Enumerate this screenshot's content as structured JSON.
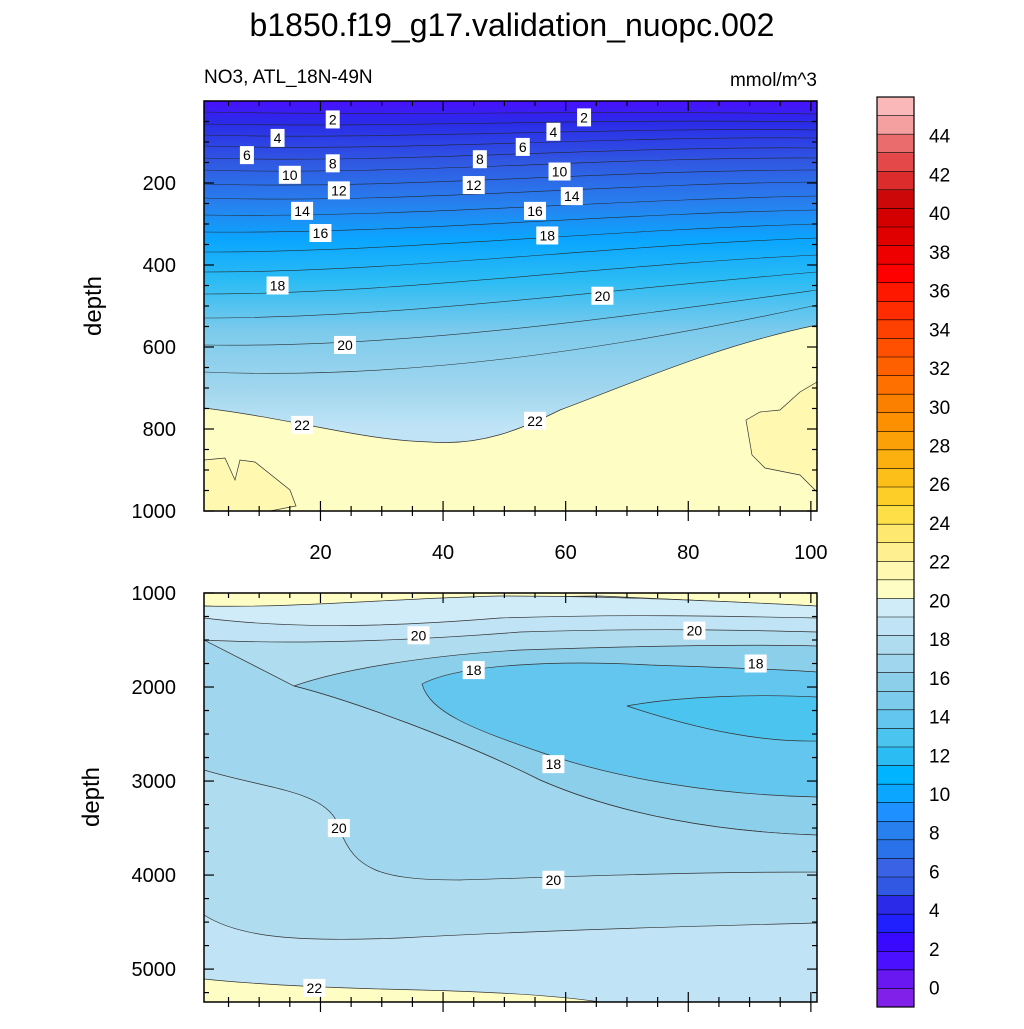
{
  "chart_data": [
    {
      "type": "heatmap",
      "subtype": "filled-contour",
      "title": "b1850.f19_g17.validation_nuopc.002",
      "subtitle_left": "NO3, ATL_18N-49N",
      "subtitle_right": "mmol/m^3",
      "xlabel": "",
      "ylabel": "depth",
      "xlim": [
        1,
        101
      ],
      "ylim": [
        1000,
        0
      ],
      "xticks": [
        20,
        40,
        60,
        80,
        100
      ],
      "xtick_labels": [
        "20",
        "40",
        "60",
        "80",
        "100"
      ],
      "yticks": [
        200,
        400,
        600,
        800,
        1000
      ],
      "ytick_labels": [
        "200",
        "400",
        "600",
        "800",
        "1000"
      ],
      "contour_interval": 2,
      "contour_labels": [
        {
          "text": "2",
          "x": 22,
          "y": 45
        },
        {
          "text": "2",
          "x": 63,
          "y": 40
        },
        {
          "text": "4",
          "x": 13,
          "y": 90
        },
        {
          "text": "4",
          "x": 58,
          "y": 75
        },
        {
          "text": "6",
          "x": 8,
          "y": 132
        },
        {
          "text": "6",
          "x": 53,
          "y": 112
        },
        {
          "text": "8",
          "x": 22,
          "y": 152
        },
        {
          "text": "8",
          "x": 46,
          "y": 142
        },
        {
          "text": "10",
          "x": 15,
          "y": 180
        },
        {
          "text": "10",
          "x": 59,
          "y": 172
        },
        {
          "text": "12",
          "x": 23,
          "y": 218
        },
        {
          "text": "12",
          "x": 45,
          "y": 205
        },
        {
          "text": "14",
          "x": 17,
          "y": 268
        },
        {
          "text": "14",
          "x": 61,
          "y": 232
        },
        {
          "text": "16",
          "x": 20,
          "y": 322
        },
        {
          "text": "16",
          "x": 55,
          "y": 268
        },
        {
          "text": "18",
          "x": 13,
          "y": 450
        },
        {
          "text": "18",
          "x": 57,
          "y": 328
        },
        {
          "text": "20",
          "x": 24,
          "y": 595
        },
        {
          "text": "20",
          "x": 66,
          "y": 475
        },
        {
          "text": "22",
          "x": 17,
          "y": 790
        },
        {
          "text": "22",
          "x": 55,
          "y": 780
        }
      ]
    },
    {
      "type": "heatmap",
      "subtype": "filled-contour",
      "xlabel": "",
      "ylabel": "depth",
      "xlim": [
        1,
        101
      ],
      "ylim": [
        5350,
        1000
      ],
      "xticks": [
        20,
        40,
        60,
        80,
        100
      ],
      "yticks": [
        1000,
        2000,
        3000,
        4000,
        5000
      ],
      "ytick_labels": [
        "1000",
        "2000",
        "3000",
        "4000",
        "5000"
      ],
      "contour_interval": 1,
      "contour_labels": [
        {
          "text": "20",
          "x": 36,
          "y": 1450
        },
        {
          "text": "20",
          "x": 81,
          "y": 1400
        },
        {
          "text": "18",
          "x": 45,
          "y": 1820
        },
        {
          "text": "18",
          "x": 91,
          "y": 1750
        },
        {
          "text": "18",
          "x": 58,
          "y": 2820
        },
        {
          "text": "20",
          "x": 23,
          "y": 3500
        },
        {
          "text": "20",
          "x": 58,
          "y": 4050
        },
        {
          "text": "22",
          "x": 19,
          "y": 5200
        }
      ]
    }
  ],
  "colorbar": {
    "labels": [
      "0",
      "2",
      "4",
      "6",
      "8",
      "10",
      "12",
      "14",
      "16",
      "18",
      "20",
      "22",
      "24",
      "26",
      "28",
      "30",
      "32",
      "34",
      "36",
      "38",
      "40",
      "42",
      "44"
    ],
    "level_min": -1,
    "level_max": 46,
    "colors": [
      "#8020e8",
      "#6a18f2",
      "#4a10ff",
      "#3808ff",
      "#2020ff",
      "#2a2ae8",
      "#3058e2",
      "#3a62e4",
      "#2a72ea",
      "#2880ee",
      "#1e90ff",
      "#0aa6ff",
      "#00b4ff",
      "#2cbcf4",
      "#4cc4f0",
      "#62c6ee",
      "#7ccaec",
      "#8ccfeb",
      "#a0d6ee",
      "#b0dcf0",
      "#c0e4f6",
      "#d0ecf8",
      "#fefdc4",
      "#fef8b0",
      "#fef090",
      "#fee870",
      "#fedf48",
      "#fece28",
      "#fcbe18",
      "#fcb010",
      "#fca008",
      "#fc9000",
      "#fc8000",
      "#fe7000",
      "#fe6000",
      "#fe5000",
      "#fe4000",
      "#fe2c00",
      "#fe1800",
      "#fe0000",
      "#ee0000",
      "#e00000",
      "#d40000",
      "#cc0808",
      "#dc2c2c",
      "#e44848",
      "#ea6c6c",
      "#f4a0a0",
      "#fab8b8"
    ]
  }
}
